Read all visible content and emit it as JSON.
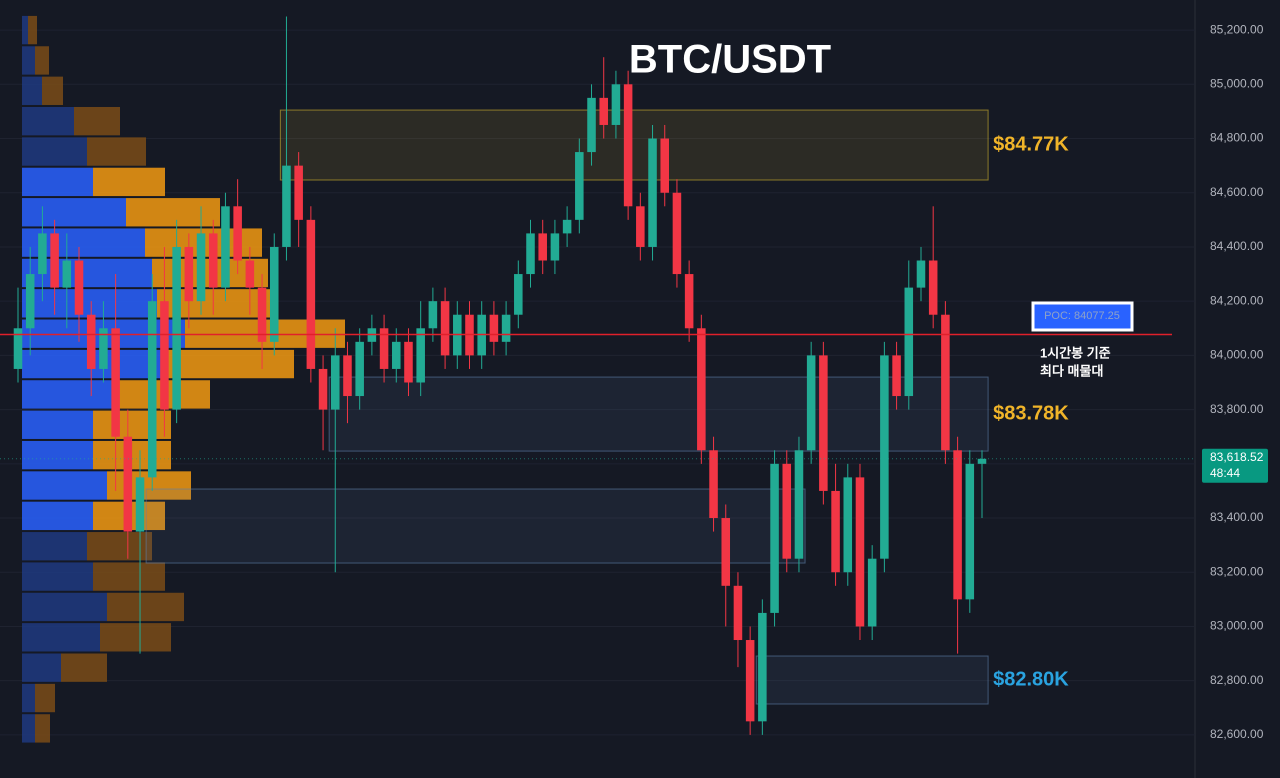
{
  "chart_data": {
    "type": "candlestick",
    "title": "BTC/USDT",
    "ylim": [
      82441,
      85311
    ],
    "yticks": [
      {
        "value": 82600,
        "label": "82,600.00"
      },
      {
        "value": 82800,
        "label": "82,800.00"
      },
      {
        "value": 83000,
        "label": "83,000.00"
      },
      {
        "value": 83200,
        "label": "83,200.00"
      },
      {
        "value": 83400,
        "label": "83,400.00"
      },
      {
        "value": 83600,
        "label": "83,600.00"
      },
      {
        "value": 83800,
        "label": "83,800.00"
      },
      {
        "value": 84000,
        "label": "84,000.00"
      },
      {
        "value": 84200,
        "label": "84,200.00"
      },
      {
        "value": 84400,
        "label": "84,400.00"
      },
      {
        "value": 84600,
        "label": "84,600.00"
      },
      {
        "value": 84800,
        "label": "84,800.00"
      },
      {
        "value": 85000,
        "label": "85,000.00"
      },
      {
        "value": 85200,
        "label": "85,200.00"
      }
    ],
    "grid": true,
    "up_color": "#22ab94",
    "down_color": "#f23645",
    "candles": [
      [
        83950,
        84250,
        83900,
        84100
      ],
      [
        84100,
        84400,
        84000,
        84300
      ],
      [
        84300,
        84550,
        84200,
        84450
      ],
      [
        84450,
        84500,
        84150,
        84250
      ],
      [
        84250,
        84450,
        84100,
        84350
      ],
      [
        84350,
        84400,
        84050,
        84150
      ],
      [
        84150,
        84200,
        83850,
        83950
      ],
      [
        83950,
        84200,
        83900,
        84100
      ],
      [
        84100,
        84300,
        83500,
        83700
      ],
      [
        83700,
        83800,
        83250,
        83350
      ],
      [
        83350,
        83650,
        82900,
        83550
      ],
      [
        83550,
        84300,
        83500,
        84200
      ],
      [
        84200,
        84400,
        83700,
        83800
      ],
      [
        83800,
        84500,
        83750,
        84400
      ],
      [
        84400,
        84450,
        84100,
        84200
      ],
      [
        84200,
        84550,
        84150,
        84450
      ],
      [
        84450,
        84500,
        84150,
        84250
      ],
      [
        84250,
        84600,
        84200,
        84550
      ],
      [
        84550,
        84650,
        84300,
        84350
      ],
      [
        84350,
        84400,
        84150,
        84250
      ],
      [
        84250,
        84300,
        83950,
        84050
      ],
      [
        84050,
        84450,
        84000,
        84400
      ],
      [
        84400,
        85250,
        84350,
        84700
      ],
      [
        84700,
        84750,
        84400,
        84500
      ],
      [
        84500,
        84550,
        83900,
        83950
      ],
      [
        83950,
        84000,
        83650,
        83800
      ],
      [
        83800,
        84100,
        83200,
        84000
      ],
      [
        84000,
        84050,
        83750,
        83850
      ],
      [
        83850,
        84100,
        83800,
        84050
      ],
      [
        84050,
        84150,
        84000,
        84100
      ],
      [
        84100,
        84150,
        83900,
        83950
      ],
      [
        83950,
        84100,
        83900,
        84050
      ],
      [
        84050,
        84100,
        83850,
        83900
      ],
      [
        83900,
        84200,
        83850,
        84100
      ],
      [
        84100,
        84250,
        84050,
        84200
      ],
      [
        84200,
        84250,
        83950,
        84000
      ],
      [
        84000,
        84200,
        83950,
        84150
      ],
      [
        84150,
        84200,
        83950,
        84000
      ],
      [
        84000,
        84200,
        83950,
        84150
      ],
      [
        84150,
        84200,
        84000,
        84050
      ],
      [
        84050,
        84200,
        84000,
        84150
      ],
      [
        84150,
        84350,
        84100,
        84300
      ],
      [
        84300,
        84500,
        84250,
        84450
      ],
      [
        84450,
        84500,
        84300,
        84350
      ],
      [
        84350,
        84500,
        84300,
        84450
      ],
      [
        84450,
        84550,
        84400,
        84500
      ],
      [
        84500,
        84800,
        84450,
        84750
      ],
      [
        84750,
        85000,
        84700,
        84950
      ],
      [
        84950,
        85100,
        84800,
        84850
      ],
      [
        84850,
        85050,
        84800,
        85000
      ],
      [
        85000,
        85050,
        84500,
        84550
      ],
      [
        84550,
        84600,
        84350,
        84400
      ],
      [
        84400,
        84850,
        84350,
        84800
      ],
      [
        84800,
        84850,
        84550,
        84600
      ],
      [
        84600,
        84650,
        84250,
        84300
      ],
      [
        84300,
        84350,
        84050,
        84100
      ],
      [
        84100,
        84150,
        83600,
        83650
      ],
      [
        83650,
        83700,
        83350,
        83400
      ],
      [
        83400,
        83450,
        83000,
        83150
      ],
      [
        83150,
        83200,
        82850,
        82950
      ],
      [
        82950,
        83000,
        82600,
        82650
      ],
      [
        82650,
        83100,
        82600,
        83050
      ],
      [
        83050,
        83650,
        83000,
        83600
      ],
      [
        83600,
        83650,
        83200,
        83250
      ],
      [
        83250,
        83700,
        83200,
        83650
      ],
      [
        83650,
        84050,
        83600,
        84000
      ],
      [
        84000,
        84050,
        83450,
        83500
      ],
      [
        83500,
        83600,
        83150,
        83200
      ],
      [
        83200,
        83600,
        83150,
        83550
      ],
      [
        83550,
        83600,
        82950,
        83000
      ],
      [
        83000,
        83300,
        82950,
        83250
      ],
      [
        83250,
        84050,
        83200,
        84000
      ],
      [
        84000,
        84050,
        83800,
        83850
      ],
      [
        83850,
        84350,
        83800,
        84250
      ],
      [
        84250,
        84400,
        84200,
        84350
      ],
      [
        84350,
        84550,
        84100,
        84150
      ],
      [
        84150,
        84200,
        83600,
        83650
      ],
      [
        83650,
        83700,
        82900,
        83100
      ],
      [
        83100,
        83650,
        83050,
        83600
      ],
      [
        83600,
        83650,
        83400,
        83618.52
      ]
    ],
    "profile": {
      "value_area": [
        83350,
        84750
      ],
      "prices": [
        85200,
        85088,
        84976,
        84864,
        84752,
        84640,
        84528,
        84416,
        84304,
        84192,
        84080,
        83968,
        83856,
        83744,
        83632,
        83520,
        83408,
        83296,
        83184,
        83072,
        82960,
        82848,
        82736,
        82624
      ],
      "buy": [
        6,
        13,
        20,
        52,
        65,
        71,
        104,
        123,
        130,
        135,
        163,
        145,
        90,
        71,
        71,
        85,
        71,
        65,
        71,
        85,
        78,
        39,
        13,
        13
      ],
      "sell": [
        9,
        14,
        21,
        46,
        59,
        72,
        94,
        117,
        116,
        116,
        160,
        127,
        98,
        78,
        78,
        84,
        72,
        65,
        72,
        77,
        71,
        46,
        20,
        15
      ]
    },
    "zones": [
      {
        "top": 84905,
        "bottom": 84647,
        "start": 22,
        "end": 79,
        "color": "#d4b62e",
        "label": "$84.77K"
      },
      {
        "top": 83920,
        "bottom": 83647,
        "start": 26,
        "end": 79,
        "color": "#5d7fa8",
        "label": "$83.78K"
      },
      {
        "top": 83507,
        "bottom": 83234,
        "start": 11,
        "end": 64,
        "color": "#5d7fa8"
      },
      {
        "top": 82891,
        "bottom": 82714,
        "start": 61,
        "end": 79,
        "color": "#5d7fa8",
        "label": "$82.80K"
      }
    ],
    "zone_label_colors": [
      "#f0b429",
      "#f0b429",
      null,
      "#2aa3e0"
    ],
    "poc": {
      "value": 84077.25,
      "label": "POC: 84077.25",
      "color": "#e0202a",
      "note": [
        "1시간봉 기준",
        "최다 매물대"
      ]
    },
    "current_price": {
      "value": 83618.52,
      "label": "83,618.52",
      "timer": "48:44"
    }
  }
}
